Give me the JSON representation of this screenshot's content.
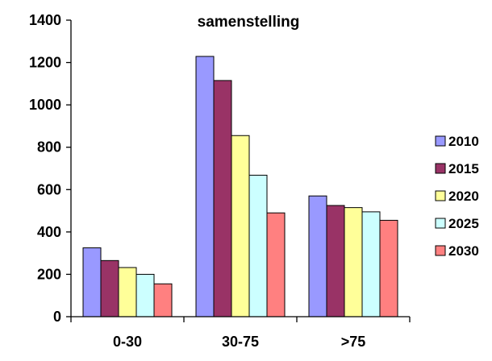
{
  "chart_data": {
    "type": "bar",
    "title": "samenstelling",
    "categories": [
      "0-30",
      "30-75",
      ">75"
    ],
    "series": [
      {
        "name": "2010",
        "color": "#9999FF",
        "values": [
          325,
          1230,
          570
        ]
      },
      {
        "name": "2015",
        "color": "#993366",
        "values": [
          265,
          1115,
          525
        ]
      },
      {
        "name": "2020",
        "color": "#FFFF99",
        "values": [
          232,
          855,
          515
        ]
      },
      {
        "name": "2025",
        "color": "#CCFFFF",
        "values": [
          200,
          668,
          495
        ]
      },
      {
        "name": "2030",
        "color": "#FF8080",
        "values": [
          155,
          490,
          455
        ]
      }
    ],
    "ylim": [
      0,
      1400
    ],
    "yticks": [
      0,
      200,
      400,
      600,
      800,
      1000,
      1200,
      1400
    ],
    "ylabel": "",
    "xlabel": "",
    "grid": false,
    "legend_position": "right",
    "note": "bar for 30-75 / 2010 is clipped at the plot top"
  }
}
